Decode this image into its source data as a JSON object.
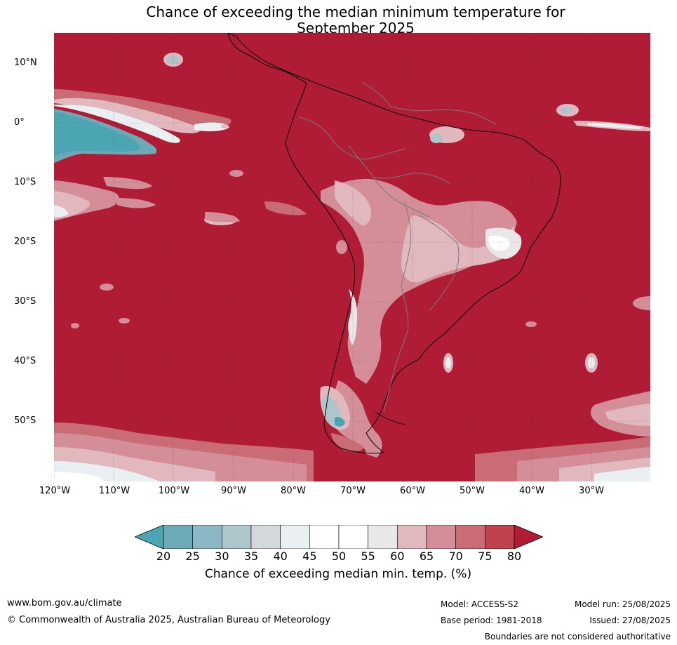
{
  "title_line1": "Chance of exceeding the median minimum temperature for",
  "title_line2": "September 2025",
  "map": {
    "lat_labels": [
      "10°N",
      "0°",
      "10°S",
      "20°S",
      "30°S",
      "40°S",
      "50°S"
    ],
    "lon_labels": [
      "120°W",
      "110°W",
      "100°W",
      "90°W",
      "80°W",
      "70°W",
      "60°W",
      "50°W",
      "40°W",
      "30°W"
    ]
  },
  "colorbar": {
    "ticks": [
      "20",
      "25",
      "30",
      "35",
      "40",
      "45",
      "50",
      "55",
      "60",
      "65",
      "70",
      "75",
      "80"
    ],
    "colors": [
      "#4ba5b2",
      "#6daab8",
      "#8cb7c4",
      "#adc6cc",
      "#d3d9da",
      "#eaf0f2",
      "#ffffff",
      "#ffffff",
      "#e9e7e8",
      "#e0b8be",
      "#d48e97",
      "#c96c76",
      "#c1424f",
      "#b01c36"
    ],
    "label": "Chance of exceeding median min. temp. (%)"
  },
  "footer": {
    "website": "www.bom.gov.au/climate",
    "copyright": "© Commonwealth of Australia 2025, Australian Bureau of Meteorology",
    "model": "Model: ACCESS-S2",
    "base_period": "Base period: 1981-2018",
    "model_run": "Model run: 25/08/2025",
    "issued": "Issued: 27/08/2025",
    "disclaimer": "Boundaries are not considered authoritative"
  }
}
